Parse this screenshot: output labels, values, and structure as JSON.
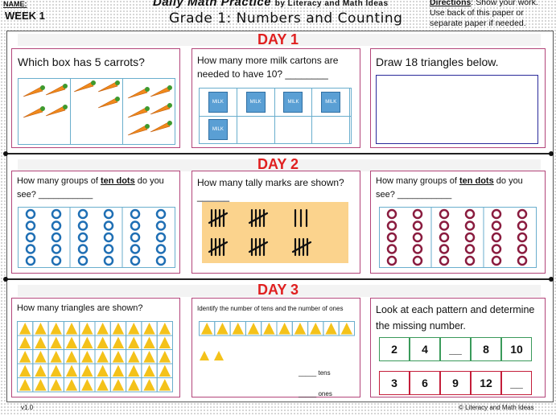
{
  "header": {
    "name_label": "NAME:",
    "week": "WEEK 1",
    "title_main": "Daily Math Practice",
    "title_by": "by Literacy and Math Ideas",
    "subtitle": "Grade 1: Numbers and Counting",
    "directions_label": "Directions",
    "directions_text": ": Show your work. Use back of this paper or separate paper if needed."
  },
  "days": {
    "d1": "DAY 1",
    "d2": "DAY 2",
    "d3": "DAY 3"
  },
  "day1": {
    "carrots_q": "Which box has 5 carrots?",
    "milk_q": "How many more milk cartons are needed to have 10? ________",
    "milk_label": "MILK",
    "triangles_q": "Draw 18 triangles below."
  },
  "day2": {
    "tens_q_pre": "How many groups of ",
    "tens_q_em": "ten dots",
    "tens_q_post": " do you see? ___________",
    "tally_q": "How many tally marks are shown? ______"
  },
  "day3": {
    "tri_count_q": "How many triangles are shown?",
    "tens_ones_q": "Identify the number of tens and the number of ones",
    "tens_blank": "_____ tens",
    "ones_blank": "_____ ones",
    "pattern_q": "Look at each pattern and determine the missing number.",
    "pattern1": [
      "2",
      "4",
      "__",
      "8",
      "10"
    ],
    "pattern2": [
      "3",
      "6",
      "9",
      "12",
      "__"
    ]
  },
  "footer": {
    "version": "v1.0",
    "copyright": "© Literacy and Math Ideas"
  },
  "colors": {
    "day_label": "#e02020",
    "card_border": "#b3457a",
    "blue_dot": "#1f6fb4",
    "maroon_dot": "#8a1c3f",
    "triangle": "#f4c21a",
    "tally_bg": "#fbd38d"
  }
}
